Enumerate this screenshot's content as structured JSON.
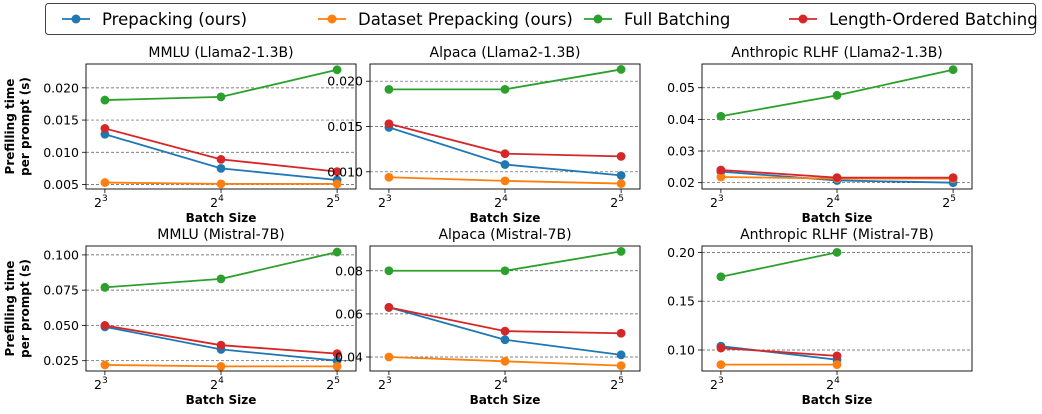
{
  "legend": {
    "placement": "top-center",
    "entries": [
      {
        "name": "Prepacking (ours)",
        "color": "#1f77b4"
      },
      {
        "name": "Dataset Prepacking (ours)",
        "color": "#ff7f0e"
      },
      {
        "name": "Full Batching",
        "color": "#2ca02c"
      },
      {
        "name": "Length-Ordered Batching",
        "color": "#d62728"
      }
    ]
  },
  "shared_ylabel": [
    "Prefilling time",
    "per prompt (s)"
  ],
  "chart_data": [
    {
      "type": "line",
      "title": "MMLU (Llama2-1.3B)",
      "xlabel": "Batch Size",
      "x": [
        8,
        16,
        32
      ],
      "xticks": [
        {
          "base": "2",
          "exp": "3"
        },
        {
          "base": "2",
          "exp": "4"
        },
        {
          "base": "2",
          "exp": "5"
        }
      ],
      "xscale": "log2",
      "ylim": [
        0.0043,
        0.0237
      ],
      "yticks": [
        "0.005",
        "0.010",
        "0.015",
        "0.020"
      ],
      "ytick_values": [
        0.005,
        0.01,
        0.015,
        0.02
      ],
      "grid": "y-dashed",
      "series": [
        {
          "name": "Prepacking (ours)",
          "values": [
            0.0128,
            0.0075,
            0.0057
          ]
        },
        {
          "name": "Dataset Prepacking (ours)",
          "values": [
            0.0053,
            0.0051,
            0.0051
          ]
        },
        {
          "name": "Full Batching",
          "values": [
            0.0181,
            0.0186,
            0.0228
          ]
        },
        {
          "name": "Length-Ordered Batching",
          "values": [
            0.0137,
            0.0089,
            0.007
          ]
        }
      ]
    },
    {
      "type": "line",
      "title": "Alpaca (Llama2-1.3B)",
      "xlabel": "Batch Size",
      "x": [
        8,
        16,
        32
      ],
      "xticks": [
        {
          "base": "2",
          "exp": "3"
        },
        {
          "base": "2",
          "exp": "4"
        },
        {
          "base": "2",
          "exp": "5"
        }
      ],
      "xscale": "log2",
      "ylim": [
        0.0081,
        0.0219
      ],
      "yticks": [
        "0.010",
        "0.015",
        "0.020"
      ],
      "ytick_values": [
        0.01,
        0.015,
        0.02
      ],
      "grid": "y-dashed",
      "series": [
        {
          "name": "Prepacking (ours)",
          "values": [
            0.0149,
            0.0108,
            0.0096
          ]
        },
        {
          "name": "Dataset Prepacking (ours)",
          "values": [
            0.0094,
            0.009,
            0.0087
          ]
        },
        {
          "name": "Full Batching",
          "values": [
            0.0191,
            0.0191,
            0.0213
          ]
        },
        {
          "name": "Length-Ordered Batching",
          "values": [
            0.0153,
            0.012,
            0.0117
          ]
        }
      ]
    },
    {
      "type": "line",
      "title": "Anthropic RLHF (Llama2-1.3B)",
      "xlabel": "Batch Size",
      "x": [
        8,
        16,
        32
      ],
      "xticks": [
        {
          "base": "2",
          "exp": "3"
        },
        {
          "base": "2",
          "exp": "4"
        },
        {
          "base": "2",
          "exp": "5"
        }
      ],
      "xscale": "log2",
      "ylim": [
        0.018,
        0.0575
      ],
      "yticks": [
        "0.02",
        "0.03",
        "0.04",
        "0.05"
      ],
      "ytick_values": [
        0.02,
        0.03,
        0.04,
        0.05
      ],
      "grid": "y-dashed",
      "series": [
        {
          "name": "Prepacking (ours)",
          "values": [
            0.0235,
            0.0207,
            0.02
          ]
        },
        {
          "name": "Dataset Prepacking (ours)",
          "values": [
            0.0218,
            0.0213,
            0.0213
          ]
        },
        {
          "name": "Full Batching",
          "values": [
            0.041,
            0.0476,
            0.0557
          ]
        },
        {
          "name": "Length-Ordered Batching",
          "values": [
            0.024,
            0.0216,
            0.0216
          ]
        }
      ]
    },
    {
      "type": "line",
      "title": "MMLU (Mistral-7B)",
      "xlabel": "Batch Size",
      "x": [
        8,
        16,
        32
      ],
      "xticks": [
        {
          "base": "2",
          "exp": "3"
        },
        {
          "base": "2",
          "exp": "4"
        },
        {
          "base": "2",
          "exp": "5"
        }
      ],
      "xscale": "log2",
      "ylim": [
        0.0177,
        0.1063
      ],
      "yticks": [
        "0.025",
        "0.050",
        "0.075",
        "0.100"
      ],
      "ytick_values": [
        0.025,
        0.05,
        0.075,
        0.1
      ],
      "grid": "y-dashed",
      "series": [
        {
          "name": "Prepacking (ours)",
          "values": [
            0.049,
            0.033,
            0.025
          ]
        },
        {
          "name": "Dataset Prepacking (ours)",
          "values": [
            0.022,
            0.021,
            0.021
          ]
        },
        {
          "name": "Full Batching",
          "values": [
            0.077,
            0.083,
            0.102
          ]
        },
        {
          "name": "Length-Ordered Batching",
          "values": [
            0.05,
            0.036,
            0.03
          ]
        }
      ]
    },
    {
      "type": "line",
      "title": "Alpaca (Mistral-7B)",
      "xlabel": "Batch Size",
      "x": [
        8,
        16,
        32
      ],
      "xticks": [
        {
          "base": "2",
          "exp": "3"
        },
        {
          "base": "2",
          "exp": "4"
        },
        {
          "base": "2",
          "exp": "5"
        }
      ],
      "xscale": "log2",
      "ylim": [
        0.0335,
        0.0915
      ],
      "yticks": [
        "0.04",
        "0.06",
        "0.08"
      ],
      "ytick_values": [
        0.04,
        0.06,
        0.08
      ],
      "grid": "y-dashed",
      "series": [
        {
          "name": "Prepacking (ours)",
          "values": [
            0.063,
            0.048,
            0.041
          ]
        },
        {
          "name": "Dataset Prepacking (ours)",
          "values": [
            0.04,
            0.038,
            0.036
          ]
        },
        {
          "name": "Full Batching",
          "values": [
            0.08,
            0.08,
            0.089
          ]
        },
        {
          "name": "Length-Ordered Batching",
          "values": [
            0.063,
            0.052,
            0.051
          ]
        }
      ]
    },
    {
      "type": "line",
      "title": "Anthropic RLHF (Mistral-7B)",
      "xlabel": "Batch Size",
      "x": [
        8,
        16
      ],
      "xticks": [
        {
          "base": "2",
          "exp": "3"
        },
        {
          "base": "2",
          "exp": "4"
        }
      ],
      "xscale": "log2",
      "ylim": [
        0.0785,
        0.2065
      ],
      "yticks": [
        "0.10",
        "0.15",
        "0.20"
      ],
      "ytick_values": [
        0.1,
        0.15,
        0.2
      ],
      "grid": "y-dashed",
      "series": [
        {
          "name": "Prepacking (ours)",
          "values": [
            0.104,
            0.09
          ]
        },
        {
          "name": "Dataset Prepacking (ours)",
          "values": [
            0.085,
            0.085
          ]
        },
        {
          "name": "Full Batching",
          "values": [
            0.175,
            0.2
          ]
        },
        {
          "name": "Length-Ordered Batching",
          "values": [
            0.102,
            0.094
          ]
        }
      ]
    }
  ]
}
